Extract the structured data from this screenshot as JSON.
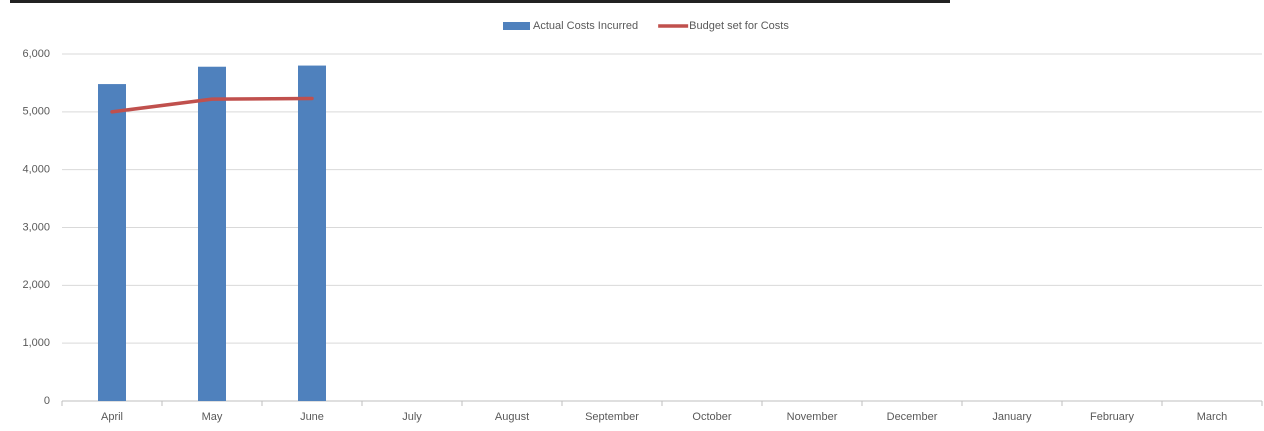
{
  "chart_data": {
    "type": "bar_line",
    "categories": [
      "April",
      "May",
      "June",
      "July",
      "August",
      "September",
      "October",
      "November",
      "December",
      "January",
      "February",
      "March"
    ],
    "series": [
      {
        "name": "Actual Costs Incurred",
        "type": "bar",
        "color": "#4f81bd",
        "values": [
          5480,
          5780,
          5800,
          null,
          null,
          null,
          null,
          null,
          null,
          null,
          null,
          null
        ]
      },
      {
        "name": "Budget set for Costs",
        "type": "line",
        "color": "#c0504d",
        "values": [
          5000,
          5220,
          5230,
          null,
          null,
          null,
          null,
          null,
          null,
          null,
          null,
          null
        ]
      }
    ],
    "ylim": [
      0,
      6000
    ],
    "yticks": [
      0,
      {
        "value": 1000,
        "label": "1,000"
      },
      {
        "value": 2000,
        "label": "2,000"
      },
      {
        "value": 3000,
        "label": "3,000"
      },
      {
        "value": 4000,
        "label": "4,000"
      },
      {
        "value": 5000,
        "label": "5,000"
      },
      {
        "value": 6000,
        "label": "6,000"
      }
    ],
    "grid": true,
    "legend": "top"
  }
}
